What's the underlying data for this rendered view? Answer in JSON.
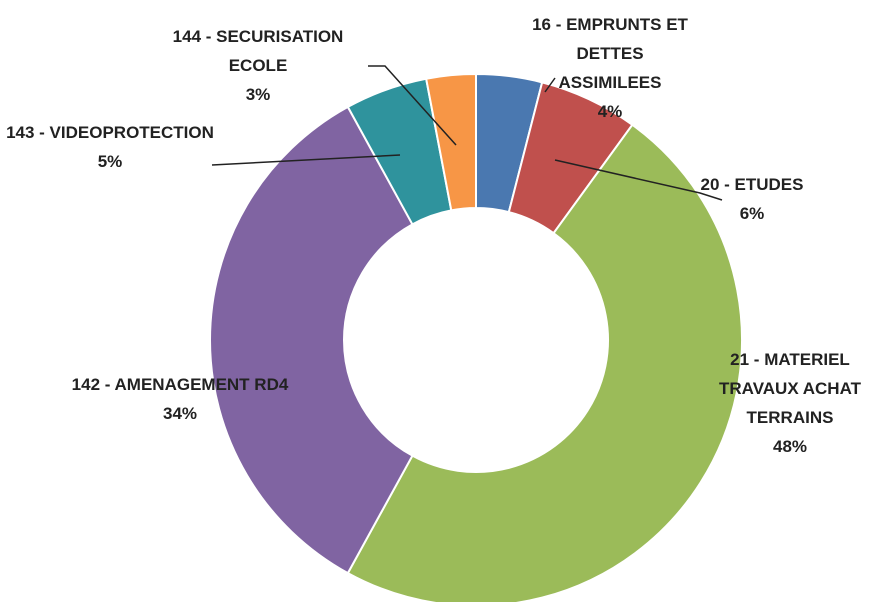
{
  "chart_data": {
    "type": "donut",
    "categories": [
      "16 - EMPRUNTS ET DETTES ASSIMILEES",
      "20 - ETUDES",
      "21 - MATERIEL TRAVAUX ACHAT TERRAINS",
      "142 - AMENAGEMENT RD4",
      "143 - VIDEOPROTECTION",
      "144 - SECURISATION ECOLE"
    ],
    "values": [
      4,
      6,
      48,
      34,
      5,
      3
    ],
    "value_labels": [
      "4%",
      "6%",
      "48%",
      "34%",
      "5%",
      "3%"
    ],
    "colors": [
      "#4a78b0",
      "#c0504d",
      "#9bbb59",
      "#8064a2",
      "#2f939d",
      "#f79646"
    ]
  }
}
